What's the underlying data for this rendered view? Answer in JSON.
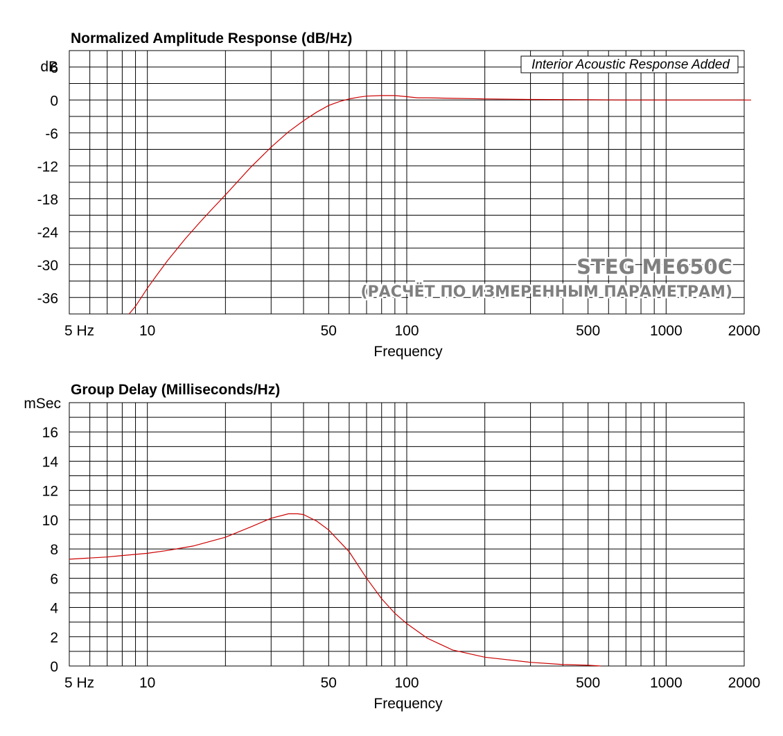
{
  "chart_data": [
    {
      "type": "line",
      "title": "Normalized Amplitude Response (dB/Hz)",
      "xlabel": "Frequency",
      "ylabel": "dB",
      "x_scale": "log",
      "xlim": [
        5,
        2000
      ],
      "ylim": [
        -39,
        9
      ],
      "x_tick_labels": [
        {
          "value": 5,
          "label": "5  Hz"
        },
        {
          "value": 10,
          "label": "10"
        },
        {
          "value": 50,
          "label": "50"
        },
        {
          "value": 100,
          "label": "100"
        },
        {
          "value": 500,
          "label": "500"
        },
        {
          "value": 1000,
          "label": "1000"
        },
        {
          "value": 2000,
          "label": "2000"
        }
      ],
      "y_tick_labels": [
        {
          "value": 6,
          "label": "6"
        },
        {
          "value": 0,
          "label": "0"
        },
        {
          "value": -6,
          "label": "-6"
        },
        {
          "value": -12,
          "label": "-12"
        },
        {
          "value": -18,
          "label": "-18"
        },
        {
          "value": -24,
          "label": "-24"
        },
        {
          "value": -30,
          "label": "-30"
        },
        {
          "value": -36,
          "label": "-36"
        }
      ],
      "grid": true,
      "annotation": "Interior Acoustic Response Added",
      "series": [
        {
          "color": "#cc0000",
          "x": [
            8.5,
            9,
            10,
            11,
            12,
            14,
            16,
            18,
            20,
            25,
            30,
            35,
            40,
            45,
            50,
            55,
            60,
            65,
            70,
            80,
            90,
            100,
            110,
            120,
            150,
            200,
            300,
            500,
            700,
            1000,
            2000
          ],
          "y": [
            -39,
            -37.6,
            -34.3,
            -31.6,
            -29.2,
            -25.3,
            -22.2,
            -19.6,
            -17.3,
            -12.3,
            -8.6,
            -5.8,
            -3.8,
            -2.2,
            -1.0,
            -0.3,
            0.2,
            0.5,
            0.7,
            0.8,
            0.8,
            0.6,
            0.4,
            0.4,
            0.3,
            0.2,
            0.1,
            0.05,
            0.0,
            0.0,
            0.0
          ]
        }
      ]
    },
    {
      "type": "line",
      "title": "Group Delay (Milliseconds/Hz)",
      "xlabel": "Frequency",
      "ylabel": "mSec",
      "x_scale": "log",
      "xlim": [
        5,
        2000
      ],
      "ylim": [
        0,
        18
      ],
      "x_tick_labels": [
        {
          "value": 5,
          "label": "5  Hz"
        },
        {
          "value": 10,
          "label": "10"
        },
        {
          "value": 50,
          "label": "50"
        },
        {
          "value": 100,
          "label": "100"
        },
        {
          "value": 500,
          "label": "500"
        },
        {
          "value": 1000,
          "label": "1000"
        },
        {
          "value": 2000,
          "label": "2000"
        }
      ],
      "y_tick_labels": [
        {
          "value": 16,
          "label": "16"
        },
        {
          "value": 14,
          "label": "14"
        },
        {
          "value": 12,
          "label": "12"
        },
        {
          "value": 10,
          "label": "10"
        },
        {
          "value": 8,
          "label": "8"
        },
        {
          "value": 6,
          "label": "6"
        },
        {
          "value": 4,
          "label": "4"
        },
        {
          "value": 2,
          "label": "2"
        },
        {
          "value": 0,
          "label": "0"
        }
      ],
      "grid": true,
      "series": [
        {
          "color": "#cc0000",
          "x": [
            5,
            7,
            8,
            10,
            12,
            15,
            20,
            25,
            30,
            35,
            38,
            40,
            45,
            50,
            60,
            70,
            80,
            90,
            100,
            120,
            150,
            200,
            300,
            400,
            500,
            560
          ],
          "y": [
            7.3,
            7.45,
            7.55,
            7.7,
            7.9,
            8.2,
            8.8,
            9.5,
            10.1,
            10.4,
            10.4,
            10.35,
            9.9,
            9.3,
            7.8,
            6.0,
            4.6,
            3.6,
            2.9,
            1.9,
            1.1,
            0.6,
            0.25,
            0.1,
            0.05,
            0.0
          ]
        }
      ]
    }
  ],
  "watermark": {
    "line1": "STEG ME650C",
    "line2": "(РАСЧЁТ ПО ИЗМЕРЕННЫМ ПАРАМЕТРАМ)"
  }
}
